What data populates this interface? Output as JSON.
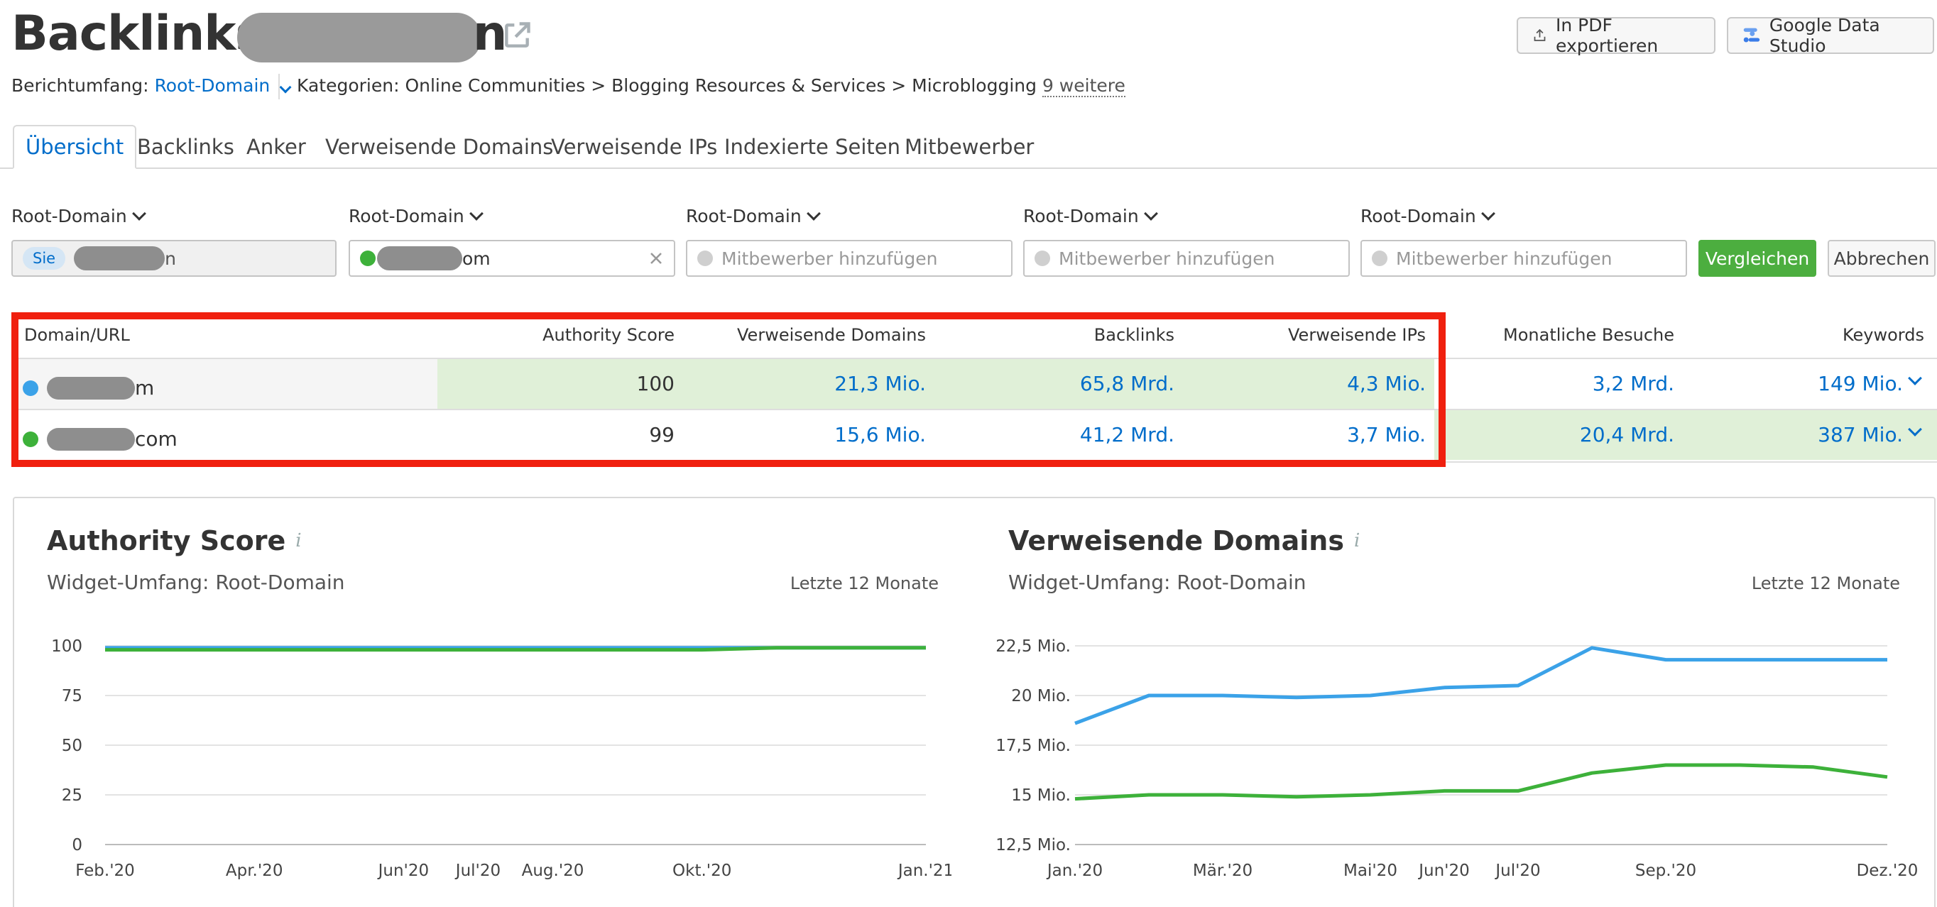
{
  "header": {
    "title": "Backlinks:",
    "title_suffix": "n",
    "pdf_button": "In PDF exportieren",
    "gds_button": "Google Data Studio",
    "scope_label": "Berichtumfang:",
    "scope_value": "Root-Domain",
    "categories_label": "Kategorien:",
    "categories_value": "Online Communities > Blogging Resources & Services > Microblogging",
    "more_link": "9 weitere"
  },
  "tabs": [
    "Übersicht",
    "Backlinks",
    "Anker",
    "Verweisende Domains",
    "Verweisende IPs",
    "Indexierte Seiten",
    "Mitbewerber"
  ],
  "compare": {
    "scope_labels": [
      "Root-Domain",
      "Root-Domain",
      "Root-Domain",
      "Root-Domain",
      "Root-Domain"
    ],
    "you_badge": "Sie",
    "you_suffix": "n",
    "competitor_suffix": "om",
    "placeholder": "Mitbewerber hinzufügen",
    "compare_button": "Vergleichen",
    "cancel_button": "Abbrechen"
  },
  "table": {
    "headers": [
      "Domain/URL",
      "Authority Score",
      "Verweisende Domains",
      "Backlinks",
      "Verweisende IPs",
      "Monatliche Besuche",
      "Keywords"
    ],
    "rows": [
      {
        "domain_suffix": "m",
        "authority": "100",
        "ref_domains": "21,3 Mio.",
        "backlinks": "65,8 Mrd.",
        "ref_ips": "4,3 Mio.",
        "visits": "3,2 Mrd.",
        "keywords": "149 Mio."
      },
      {
        "domain_suffix": "com",
        "authority": "99",
        "ref_domains": "15,6 Mio.",
        "backlinks": "41,2 Mrd.",
        "ref_ips": "3,7 Mio.",
        "visits": "20,4 Mrd.",
        "keywords": "387 Mio."
      }
    ]
  },
  "widgets": {
    "authority": {
      "title": "Authority Score",
      "subtitle": "Widget-Umfang: Root-Domain",
      "range": "Letzte 12 Monate"
    },
    "ref_domains": {
      "title": "Verweisende Domains",
      "subtitle": "Widget-Umfang: Root-Domain",
      "range": "Letzte 12 Monate"
    }
  },
  "colors": {
    "blue_series": "#3ba2e8",
    "green_series": "#3db13a",
    "accent": "#006dca",
    "highlight": "#f0200f"
  },
  "chart_data": [
    {
      "type": "line",
      "title": "Authority Score",
      "x": [
        "Feb.'20",
        "",
        "Apr.'20",
        "",
        "Jun'20",
        "Jul'20",
        "Aug.'20",
        "",
        "Okt.'20",
        "",
        "",
        "Jan.'21"
      ],
      "ylim": [
        0,
        100
      ],
      "yticks": [
        "100",
        "75",
        "50",
        "25",
        "0"
      ],
      "series": [
        {
          "name": "domain 1",
          "color": "#3ba2e8",
          "values": [
            99,
            99,
            99,
            99,
            99,
            99,
            99,
            99,
            99,
            99,
            99,
            99
          ]
        },
        {
          "name": "domain 2",
          "color": "#3db13a",
          "values": [
            98,
            98,
            98,
            98,
            98,
            98,
            98,
            98,
            98,
            99,
            99,
            99
          ]
        }
      ]
    },
    {
      "type": "line",
      "title": "Verweisende Domains",
      "x": [
        "Jan.'20",
        "",
        "Mär.'20",
        "",
        "Mai'20",
        "Jun'20",
        "Jul'20",
        "",
        "Sep.'20",
        "",
        "",
        "Dez.'20"
      ],
      "ylim": [
        12.5,
        22.5
      ],
      "yticks": [
        "22,5 Mio.",
        "20 Mio.",
        "17,5 Mio.",
        "15 Mio.",
        "12,5 Mio."
      ],
      "series": [
        {
          "name": "domain 1",
          "color": "#3ba2e8",
          "values": [
            18.6,
            20.0,
            20.0,
            19.9,
            20.0,
            20.4,
            20.5,
            22.4,
            21.8,
            21.8,
            21.8,
            21.8
          ]
        },
        {
          "name": "domain 2",
          "color": "#3db13a",
          "values": [
            14.8,
            15.0,
            15.0,
            14.9,
            15.0,
            15.2,
            15.2,
            16.1,
            16.5,
            16.5,
            16.4,
            15.9
          ]
        }
      ]
    }
  ]
}
